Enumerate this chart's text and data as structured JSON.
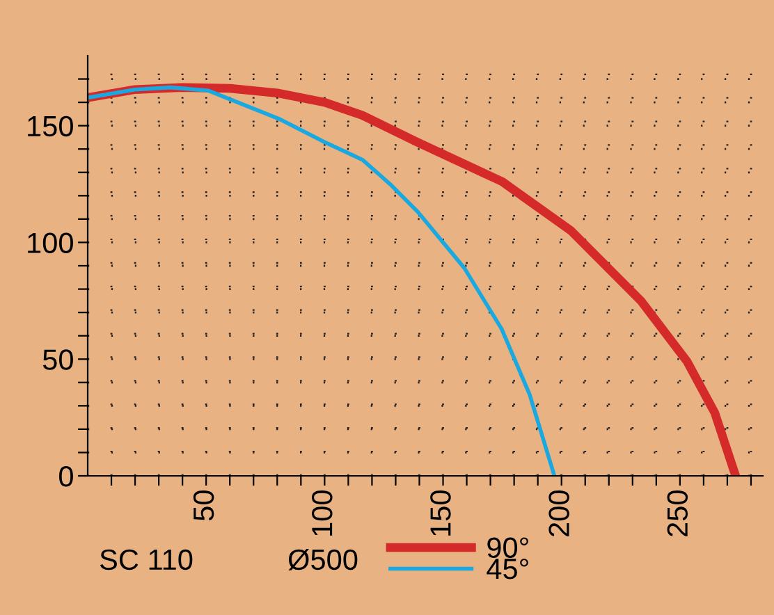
{
  "chart_data": {
    "type": "line",
    "x": [
      0,
      20,
      40,
      60,
      80,
      100,
      116,
      139,
      175,
      204,
      233.5,
      253,
      264.7,
      273.5
    ],
    "xlim": [
      0,
      285
    ],
    "xticks": [
      {
        "value": 10,
        "label": null
      },
      {
        "value": 20,
        "label": null
      },
      {
        "value": 30,
        "label": null
      },
      {
        "value": 40,
        "label": null
      },
      50,
      {
        "value": 60,
        "label": null
      },
      {
        "value": 70,
        "label": null
      },
      {
        "value": 80,
        "label": null
      },
      {
        "value": 90,
        "label": null
      },
      100,
      {
        "value": 110,
        "label": null
      },
      {
        "value": 120,
        "label": null
      },
      {
        "value": 130,
        "label": null
      },
      {
        "value": 140,
        "label": null
      },
      150,
      {
        "value": 160,
        "label": null
      },
      {
        "value": 170,
        "label": null
      },
      {
        "value": 180,
        "label": null
      },
      {
        "value": 190,
        "label": null
      },
      200,
      {
        "value": 210,
        "label": null
      },
      {
        "value": 220,
        "label": null
      },
      {
        "value": 230,
        "label": null
      },
      {
        "value": 240,
        "label": null
      },
      250,
      {
        "value": 260,
        "label": null
      },
      {
        "value": 270,
        "label": null
      },
      {
        "value": 280,
        "label": null
      }
    ],
    "ylim": [
      0,
      180
    ],
    "yticks": [
      0,
      {
        "value": 10,
        "label": null
      },
      {
        "value": 20,
        "label": null
      },
      {
        "value": 30,
        "label": null
      },
      {
        "value": 40,
        "label": null
      },
      50,
      {
        "value": 60,
        "label": null
      },
      {
        "value": 70,
        "label": null
      },
      {
        "value": 80,
        "label": null
      },
      {
        "value": 90,
        "label": null
      },
      100,
      {
        "value": 110,
        "label": null
      },
      {
        "value": 120,
        "label": null
      },
      {
        "value": 130,
        "label": null
      },
      {
        "value": 140,
        "label": null
      },
      150,
      {
        "value": 160,
        "label": null
      },
      {
        "value": 170,
        "label": null
      }
    ],
    "series": [
      {
        "name": "90°",
        "color": "#d42a2a",
        "values": [
          162,
          165.5,
          166.4,
          166,
          164,
          160,
          154.4,
          143,
          126,
          105,
          75,
          49,
          27,
          0
        ]
      },
      {
        "name": "45°",
        "color": "#1aa8e0",
        "x": [
          0,
          20,
          35,
          51,
          80.6,
          100,
          116,
          127.6,
          139.4,
          159,
          174.7,
          186.5,
          197
        ],
        "values": [
          162,
          165.5,
          166.4,
          165,
          153,
          143,
          135.4,
          125,
          113,
          89,
          63,
          35,
          0
        ]
      }
    ],
    "annotations": [
      "SC 110",
      "Ø500"
    ],
    "grid": true,
    "legend": "bottom",
    "marker": "none",
    "line_style": "solid"
  }
}
